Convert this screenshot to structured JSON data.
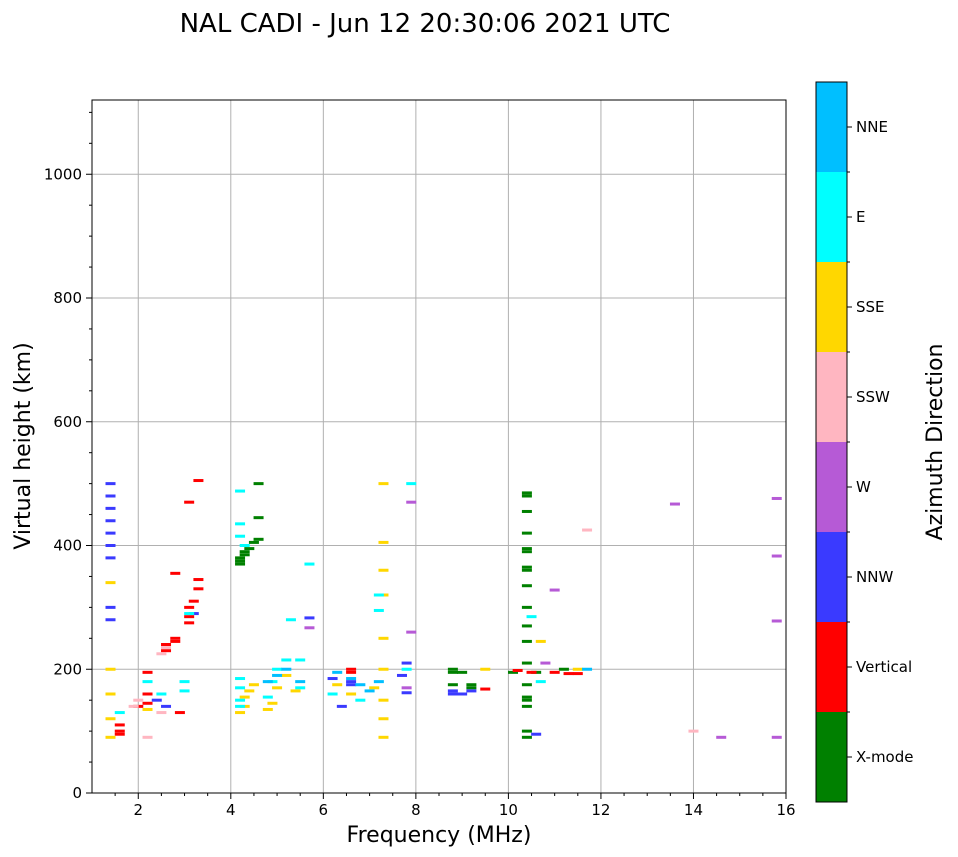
{
  "chart_data": {
    "type": "scatter",
    "title": "NAL CADI - Jun 12 20:30:06 2021 UTC",
    "xlabel": "Frequency (MHz)",
    "ylabel": "Virtual height (km)",
    "xlim": [
      1,
      16
    ],
    "ylim": [
      0,
      1120
    ],
    "xticks": [
      2,
      4,
      6,
      8,
      10,
      12,
      14,
      16
    ],
    "yticks": [
      0,
      200,
      400,
      600,
      800,
      1000
    ],
    "grid": true,
    "colorbar": {
      "label": "Azimuth Direction",
      "categories": [
        {
          "name": "X-mode",
          "color": "#008000"
        },
        {
          "name": "Vertical",
          "color": "#ff0000"
        },
        {
          "name": "NNW",
          "color": "#3a3aff"
        },
        {
          "name": "W",
          "color": "#b65ad6"
        },
        {
          "name": "SSW",
          "color": "#ffb6c1"
        },
        {
          "name": "SSE",
          "color": "#ffd700"
        },
        {
          "name": "E",
          "color": "#00ffff"
        },
        {
          "name": "NNE",
          "color": "#00bfff"
        }
      ]
    },
    "series": [
      {
        "name": "X-mode",
        "points": [
          [
            4.2,
            370
          ],
          [
            4.2,
            375
          ],
          [
            4.2,
            380
          ],
          [
            4.3,
            385
          ],
          [
            4.3,
            390
          ],
          [
            4.4,
            395
          ],
          [
            4.5,
            405
          ],
          [
            4.6,
            410
          ],
          [
            4.6,
            445
          ],
          [
            4.6,
            500
          ],
          [
            8.8,
            195
          ],
          [
            8.8,
            200
          ],
          [
            9.0,
            195
          ],
          [
            9.2,
            175
          ],
          [
            9.2,
            170
          ],
          [
            8.8,
            175
          ],
          [
            10.4,
            485
          ],
          [
            10.4,
            480
          ],
          [
            10.4,
            455
          ],
          [
            10.4,
            420
          ],
          [
            10.4,
            395
          ],
          [
            10.4,
            390
          ],
          [
            10.4,
            365
          ],
          [
            10.4,
            360
          ],
          [
            10.4,
            335
          ],
          [
            10.4,
            300
          ],
          [
            10.4,
            270
          ],
          [
            10.4,
            245
          ],
          [
            10.4,
            210
          ],
          [
            10.4,
            175
          ],
          [
            10.4,
            155
          ],
          [
            10.4,
            150
          ],
          [
            10.4,
            140
          ],
          [
            10.4,
            100
          ],
          [
            10.4,
            90
          ],
          [
            10.1,
            195
          ],
          [
            10.6,
            195
          ],
          [
            11.2,
            200
          ]
        ]
      },
      {
        "name": "Vertical",
        "points": [
          [
            1.6,
            95
          ],
          [
            1.6,
            100
          ],
          [
            1.6,
            110
          ],
          [
            2.0,
            140
          ],
          [
            2.2,
            145
          ],
          [
            2.2,
            160
          ],
          [
            2.2,
            195
          ],
          [
            2.6,
            230
          ],
          [
            2.6,
            240
          ],
          [
            2.8,
            250
          ],
          [
            2.8,
            245
          ],
          [
            2.8,
            355
          ],
          [
            3.1,
            275
          ],
          [
            3.1,
            285
          ],
          [
            3.1,
            300
          ],
          [
            3.1,
            470
          ],
          [
            3.2,
            310
          ],
          [
            3.3,
            330
          ],
          [
            3.3,
            345
          ],
          [
            3.3,
            505
          ],
          [
            2.9,
            130
          ],
          [
            6.6,
            200
          ],
          [
            6.6,
            195
          ],
          [
            9.5,
            168
          ],
          [
            11.0,
            195
          ],
          [
            11.3,
            193
          ],
          [
            11.5,
            193
          ],
          [
            10.2,
            198
          ],
          [
            10.5,
            195
          ]
        ]
      },
      {
        "name": "NNW",
        "points": [
          [
            1.4,
            500
          ],
          [
            1.4,
            480
          ],
          [
            1.4,
            460
          ],
          [
            1.4,
            440
          ],
          [
            1.4,
            420
          ],
          [
            1.4,
            400
          ],
          [
            1.4,
            380
          ],
          [
            1.4,
            300
          ],
          [
            1.4,
            280
          ],
          [
            2.4,
            150
          ],
          [
            2.6,
            140
          ],
          [
            3.2,
            290
          ],
          [
            5.7,
            283
          ],
          [
            6.2,
            185
          ],
          [
            6.4,
            140
          ],
          [
            6.6,
            175
          ],
          [
            6.6,
            180
          ],
          [
            7.8,
            162
          ],
          [
            7.8,
            210
          ],
          [
            7.7,
            190
          ],
          [
            8.8,
            160
          ],
          [
            8.8,
            165
          ],
          [
            9.0,
            160
          ],
          [
            9.2,
            165
          ],
          [
            10.6,
            95
          ]
        ]
      },
      {
        "name": "W",
        "points": [
          [
            5.7,
            267
          ],
          [
            7.8,
            170
          ],
          [
            7.9,
            260
          ],
          [
            7.9,
            470
          ],
          [
            11.0,
            328
          ],
          [
            13.6,
            467
          ],
          [
            14.6,
            90
          ],
          [
            15.8,
            90
          ],
          [
            15.8,
            383
          ],
          [
            15.8,
            476
          ],
          [
            15.8,
            278
          ],
          [
            10.8,
            210
          ]
        ]
      },
      {
        "name": "SSW",
        "points": [
          [
            1.9,
            140
          ],
          [
            2.2,
            90
          ],
          [
            2.5,
            225
          ],
          [
            2.6,
            235
          ],
          [
            2.5,
            130
          ],
          [
            11.7,
            425
          ],
          [
            14.0,
            100
          ],
          [
            2.0,
            150
          ]
        ]
      },
      {
        "name": "SSE",
        "points": [
          [
            1.4,
            90
          ],
          [
            1.4,
            120
          ],
          [
            1.4,
            160
          ],
          [
            1.4,
            200
          ],
          [
            1.4,
            340
          ],
          [
            2.2,
            135
          ],
          [
            4.2,
            130
          ],
          [
            4.3,
            140
          ],
          [
            4.3,
            155
          ],
          [
            4.4,
            165
          ],
          [
            4.5,
            175
          ],
          [
            4.8,
            135
          ],
          [
            4.9,
            145
          ],
          [
            5.0,
            170
          ],
          [
            5.2,
            190
          ],
          [
            5.4,
            165
          ],
          [
            6.3,
            175
          ],
          [
            6.6,
            160
          ],
          [
            7.1,
            170
          ],
          [
            7.3,
            90
          ],
          [
            7.3,
            120
          ],
          [
            7.3,
            150
          ],
          [
            7.3,
            200
          ],
          [
            7.3,
            250
          ],
          [
            7.3,
            320
          ],
          [
            7.3,
            360
          ],
          [
            7.3,
            405
          ],
          [
            7.3,
            500
          ],
          [
            10.7,
            245
          ],
          [
            11.5,
            200
          ],
          [
            9.5,
            200
          ]
        ]
      },
      {
        "name": "E",
        "points": [
          [
            1.6,
            130
          ],
          [
            2.2,
            180
          ],
          [
            2.5,
            160
          ],
          [
            3.0,
            180
          ],
          [
            3.0,
            165
          ],
          [
            3.1,
            290
          ],
          [
            4.2,
            140
          ],
          [
            4.2,
            150
          ],
          [
            4.2,
            170
          ],
          [
            4.2,
            185
          ],
          [
            4.2,
            415
          ],
          [
            4.2,
            435
          ],
          [
            4.2,
            488
          ],
          [
            4.3,
            400
          ],
          [
            4.8,
            155
          ],
          [
            4.9,
            180
          ],
          [
            5.0,
            200
          ],
          [
            5.2,
            215
          ],
          [
            5.3,
            280
          ],
          [
            5.5,
            215
          ],
          [
            5.5,
            170
          ],
          [
            5.7,
            370
          ],
          [
            6.2,
            160
          ],
          [
            6.8,
            150
          ],
          [
            7.2,
            295
          ],
          [
            7.2,
            320
          ],
          [
            7.8,
            200
          ],
          [
            7.9,
            500
          ],
          [
            10.5,
            285
          ],
          [
            10.7,
            180
          ]
        ]
      },
      {
        "name": "NNE",
        "points": [
          [
            4.8,
            180
          ],
          [
            5.0,
            190
          ],
          [
            5.2,
            200
          ],
          [
            5.5,
            180
          ],
          [
            6.3,
            195
          ],
          [
            6.6,
            185
          ],
          [
            6.8,
            175
          ],
          [
            7.0,
            165
          ],
          [
            7.2,
            180
          ],
          [
            11.7,
            200
          ]
        ]
      }
    ]
  }
}
